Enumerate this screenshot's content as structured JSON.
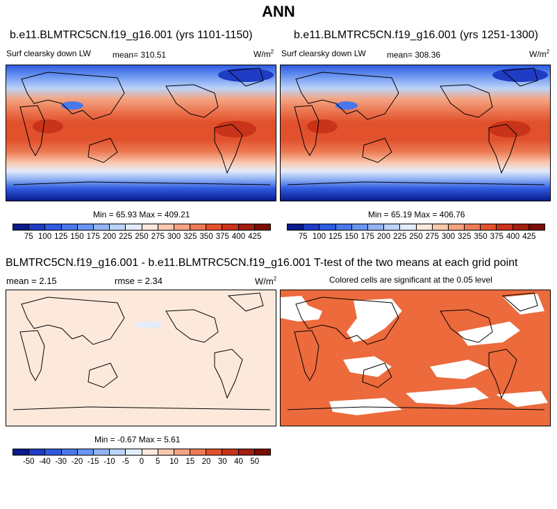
{
  "title": "ANN",
  "panels": {
    "top_left": {
      "case": "b.e11.BLMTRC5CN.f19_g16.001 (yrs 1101-1150)",
      "variable": "Surf clearsky down LW",
      "mean_label": "mean=",
      "mean": "310.51",
      "units": "W/m",
      "units_sup": "2",
      "min_label": "Min =",
      "min": "65.93",
      "max_label": "Max =",
      "max": "409.21"
    },
    "top_right": {
      "case": "b.e11.BLMTRC5CN.f19_g16.001 (yrs 1251-1300)",
      "variable": "Surf clearsky down LW",
      "mean_label": "mean=",
      "mean": "308.36",
      "units": "W/m",
      "units_sup": "2",
      "min_label": "Min =",
      "min": "65.19",
      "max_label": "Max =",
      "max": "406.76"
    },
    "bottom_left": {
      "title": "BLMTRC5CN.f19_g16.001 - b.e11.BLMTRC5CN.f19_g16.001",
      "mean_label": "mean =",
      "mean": "2.15",
      "rmse_label": "rmse =",
      "rmse": "2.34",
      "units": "W/m",
      "units_sup": "2",
      "min_label": "Min =",
      "min": "-0.67",
      "max_label": "Max =",
      "max": "5.61"
    },
    "bottom_right": {
      "title": "T-test of the two means at each grid point",
      "subtitle": "Colored cells are significant at the 0.05 level"
    }
  },
  "colorbar_abs": {
    "labels": [
      "75",
      "100",
      "125",
      "150",
      "175",
      "200",
      "225",
      "250",
      "275",
      "300",
      "325",
      "350",
      "375",
      "400",
      "425"
    ],
    "colors": [
      "#0a1a8c",
      "#1f3cc4",
      "#2f5be0",
      "#4a78ea",
      "#6a95f0",
      "#93b4f4",
      "#bcd3f8",
      "#e3ecfb",
      "#fde9dc",
      "#f9c8ad",
      "#f3a482",
      "#ec7b55",
      "#e1512c",
      "#c9331a",
      "#a31f10",
      "#7a0d06"
    ]
  },
  "colorbar_diff": {
    "labels": [
      "-50",
      "-40",
      "-30",
      "-20",
      "-15",
      "-10",
      "-5",
      "0",
      "5",
      "10",
      "15",
      "20",
      "30",
      "40",
      "50"
    ],
    "colors": [
      "#0a1a8c",
      "#1f3cc4",
      "#2f5be0",
      "#4a78ea",
      "#6a95f0",
      "#93b4f4",
      "#bcd3f8",
      "#e3ecfb",
      "#fde9dc",
      "#f9c8ad",
      "#f3a482",
      "#ec7b55",
      "#e1512c",
      "#c9331a",
      "#a31f10",
      "#7a0d06"
    ]
  },
  "colors": {
    "diff_fill": "#fde9dc",
    "ttest_fill": "#ec6a3c"
  }
}
